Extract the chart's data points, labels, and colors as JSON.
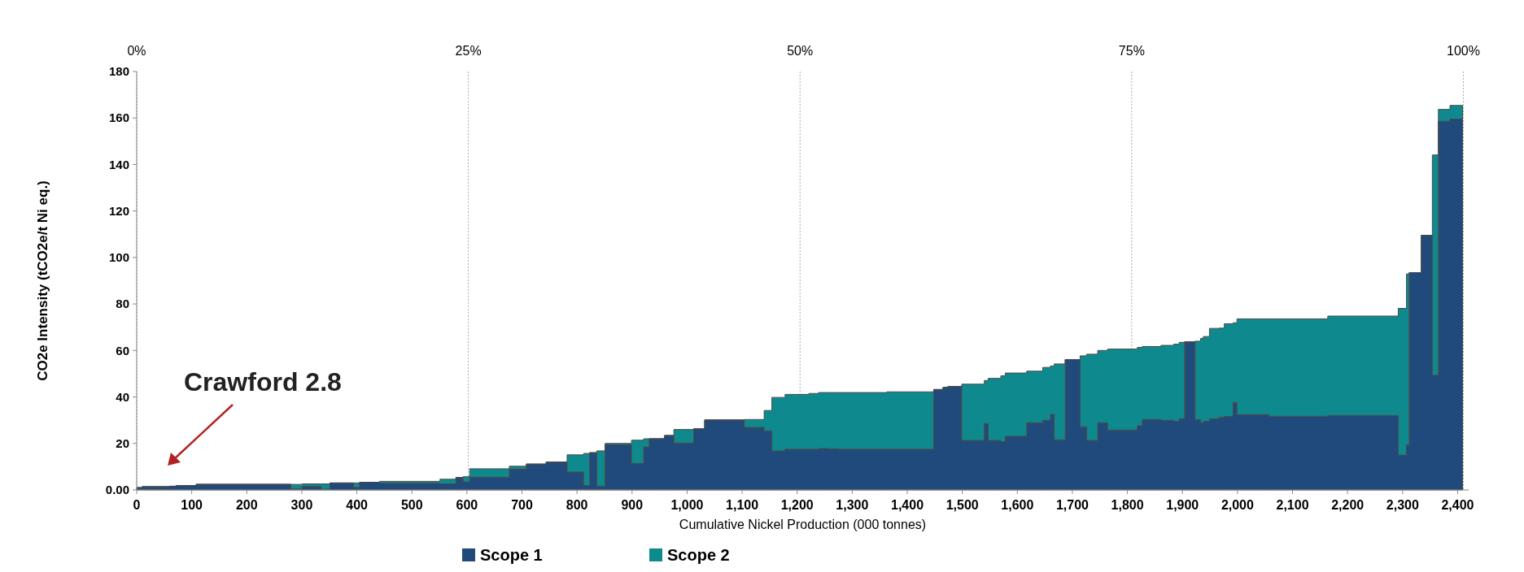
{
  "chart_data": {
    "type": "area",
    "stacked": true,
    "xlabel": "Cumulative Nickel Production (000 tonnes)",
    "ylabel": "CO2e Intensity (tCO2e/t Ni eq.)",
    "x": [
      0,
      10,
      10,
      60,
      60,
      72,
      72,
      108,
      108,
      280,
      280,
      301,
      301,
      335,
      335,
      351,
      351,
      394,
      394,
      405,
      405,
      441,
      441,
      551,
      551,
      580,
      580,
      593,
      593,
      605,
      605,
      677,
      677,
      708,
      708,
      744,
      744,
      782,
      782,
      812,
      812,
      823,
      823,
      836,
      836,
      851,
      851,
      899,
      899,
      921,
      921,
      931,
      931,
      959,
      959,
      976,
      976,
      1012,
      1012,
      1032,
      1032,
      1104,
      1104,
      1140,
      1140,
      1154,
      1154,
      1178,
      1178,
      1221,
      1221,
      1239,
      1239,
      1256,
      1256,
      1275,
      1275,
      1363,
      1363,
      1448,
      1448,
      1465,
      1465,
      1474,
      1474,
      1499,
      1499,
      1540,
      1540,
      1547,
      1547,
      1570,
      1570,
      1578,
      1578,
      1617,
      1617,
      1646,
      1646,
      1660,
      1660,
      1667,
      1667,
      1687,
      1687,
      1714,
      1714,
      1726,
      1726,
      1746,
      1746,
      1764,
      1764,
      1818,
      1818,
      1827,
      1827,
      1861,
      1861,
      1884,
      1884,
      1894,
      1894,
      1904,
      1904,
      1923,
      1923,
      1933,
      1933,
      1938,
      1938,
      1949,
      1949,
      1966,
      1966,
      1976,
      1976,
      1992,
      1992,
      1999,
      1999,
      2057,
      2057,
      2164,
      2164,
      2292,
      2292,
      2307,
      2307,
      2312,
      2312,
      2334,
      2334,
      2354,
      2354,
      2365,
      2365,
      2386,
      2386,
      2409
    ],
    "series": [
      {
        "name": "Scope 1",
        "color": "#214a7c",
        "values": [
          1.0,
          1.0,
          1.4,
          1.4,
          1.6,
          1.6,
          1.9,
          1.9,
          2.4,
          2.4,
          0.4,
          0.4,
          1.5,
          1.5,
          0.3,
          0.3,
          3.0,
          3.0,
          1.1,
          1.1,
          3.3,
          3.3,
          2.9,
          2.9,
          2.6,
          2.6,
          5.3,
          5.3,
          3.5,
          3.5,
          5.5,
          5.5,
          8.9,
          8.9,
          11.1,
          11.1,
          12.0,
          12.0,
          7.7,
          7.7,
          1.9,
          1.9,
          16.0,
          16.0,
          1.7,
          1.7,
          19.4,
          19.4,
          11.4,
          11.4,
          18.5,
          18.5,
          22.0,
          22.0,
          23.4,
          23.4,
          20.2,
          20.2,
          26.3,
          26.3,
          30.1,
          30.1,
          26.9,
          26.9,
          25.4,
          25.4,
          16.8,
          16.8,
          17.5,
          17.5,
          17.5,
          17.5,
          17.8,
          17.8,
          17.7,
          17.7,
          17.5,
          17.5,
          17.5,
          17.5,
          43.2,
          43.2,
          44.1,
          44.1,
          44.5,
          44.5,
          21.3,
          21.3,
          28.6,
          28.6,
          21.3,
          21.3,
          20.8,
          20.8,
          23.1,
          23.1,
          28.9,
          28.9,
          30.0,
          30.0,
          32.5,
          32.5,
          21.6,
          21.6,
          56.1,
          56.1,
          27.2,
          27.2,
          21.3,
          21.3,
          28.9,
          28.9,
          25.8,
          25.8,
          27.6,
          27.6,
          30.3,
          30.3,
          30.0,
          30.0,
          29.6,
          29.6,
          30.6,
          30.6,
          63.7,
          63.7,
          30.3,
          30.3,
          28.8,
          28.8,
          29.5,
          29.5,
          30.6,
          30.6,
          31.2,
          31.2,
          31.6,
          31.6,
          37.7,
          37.7,
          32.4,
          32.4,
          31.7,
          31.7,
          32.0,
          32.0,
          15.0,
          15.0,
          19.5,
          19.5,
          93.5,
          93.5,
          109.5,
          109.5,
          49.3,
          49.3,
          158.6,
          158.6,
          159.5,
          159.5
        ]
      },
      {
        "name": "Scope 2",
        "color": "#0e8a8e",
        "values": [
          0,
          0,
          0,
          0,
          0,
          0,
          0,
          0,
          0,
          0,
          2.0,
          2.0,
          1.1,
          1.1,
          2.3,
          2.3,
          0,
          0,
          1.9,
          1.9,
          0,
          0,
          0.8,
          0.8,
          2.0,
          2.0,
          0,
          0,
          2.2,
          2.2,
          3.6,
          3.6,
          1.3,
          1.3,
          0,
          0,
          0,
          0,
          7.4,
          7.4,
          13.8,
          13.8,
          0,
          0,
          15.1,
          15.1,
          0.6,
          0.6,
          10.0,
          10.0,
          3.5,
          3.5,
          0,
          0,
          0,
          0,
          5.8,
          5.8,
          0,
          0,
          0,
          0,
          3.4,
          3.4,
          8.8,
          8.8,
          23.0,
          23.0,
          23.6,
          23.6,
          24.0,
          24.0,
          24.1,
          24.1,
          24.2,
          24.2,
          24.4,
          24.4,
          24.7,
          24.7,
          0,
          0,
          0,
          0,
          0,
          0,
          24.2,
          24.2,
          18.5,
          18.5,
          26.7,
          26.7,
          28.3,
          28.3,
          27.2,
          27.2,
          22.2,
          22.2,
          22.7,
          22.7,
          20.8,
          20.8,
          32.6,
          32.6,
          0,
          0,
          30.5,
          30.5,
          37.1,
          37.1,
          31.1,
          31.1,
          34.8,
          34.8,
          33.7,
          33.7,
          31.4,
          31.4,
          32.2,
          32.2,
          33.1,
          33.1,
          32.9,
          32.9,
          0,
          0,
          33.7,
          33.7,
          36.4,
          36.4,
          36.5,
          36.5,
          38.9,
          38.9,
          38.4,
          38.4,
          39.9,
          39.9,
          34.2,
          34.2,
          41.2,
          41.2,
          41.9,
          41.9,
          42.8,
          42.8,
          63.1,
          63.1,
          73.4,
          73.4,
          0,
          0,
          0,
          0,
          94.8,
          94.8,
          5.1,
          5.1,
          5.9,
          5.9
        ]
      }
    ],
    "xlim": [
      0,
      2420
    ],
    "xticks": [
      {
        "value": 0,
        "label": "0"
      },
      {
        "value": 100,
        "label": "100"
      },
      {
        "value": 200,
        "label": "200"
      },
      {
        "value": 300,
        "label": "300"
      },
      {
        "value": 400,
        "label": "400"
      },
      {
        "value": 500,
        "label": "500"
      },
      {
        "value": 600,
        "label": "600"
      },
      {
        "value": 700,
        "label": "700"
      },
      {
        "value": 800,
        "label": "800"
      },
      {
        "value": 900,
        "label": "900"
      },
      {
        "value": 1000,
        "label": "1,000"
      },
      {
        "value": 1100,
        "label": "1,100"
      },
      {
        "value": 1200,
        "label": "1,200"
      },
      {
        "value": 1300,
        "label": "1,300"
      },
      {
        "value": 1400,
        "label": "1,400"
      },
      {
        "value": 1500,
        "label": "1,500"
      },
      {
        "value": 1600,
        "label": "1,600"
      },
      {
        "value": 1700,
        "label": "1,700"
      },
      {
        "value": 1800,
        "label": "1,800"
      },
      {
        "value": 1900,
        "label": "1,900"
      },
      {
        "value": 2000,
        "label": "2,000"
      },
      {
        "value": 2100,
        "label": "2,100"
      },
      {
        "value": 2200,
        "label": "2,200"
      },
      {
        "value": 2300,
        "label": "2,300"
      },
      {
        "value": 2400,
        "label": "2,400"
      }
    ],
    "x2lim": [
      0,
      100.4
    ],
    "x2ticks": [
      {
        "value": 0,
        "label": "0%"
      },
      {
        "value": 25,
        "label": "25%"
      },
      {
        "value": 50,
        "label": "50%"
      },
      {
        "value": 75,
        "label": "75%"
      },
      {
        "value": 100,
        "label": "100%"
      }
    ],
    "ylim": [
      0,
      180
    ],
    "yticks": [
      {
        "value": 0,
        "label": "0.00"
      },
      20,
      40,
      60,
      80,
      100,
      120,
      140,
      160,
      180
    ],
    "grid": "x",
    "legend": "bottom",
    "annotations": [
      "Crawford 2.8"
    ]
  }
}
